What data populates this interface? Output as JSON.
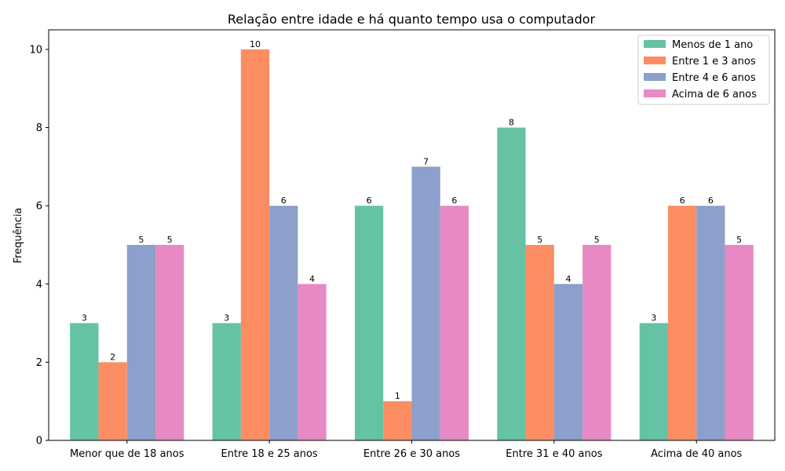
{
  "chart_data": {
    "type": "bar",
    "title": "Relação entre idade e há quanto tempo usa o computador",
    "xlabel": "",
    "ylabel": "Frequência",
    "ylim": [
      0,
      10.5
    ],
    "yticks": [
      0,
      2,
      4,
      6,
      8,
      10
    ],
    "grid": false,
    "legend_position": "top-right",
    "categories": [
      "Menor que de 18 anos",
      "Entre 18 e 25 anos",
      "Entre 26 e 30 anos",
      "Entre 31 e 40 anos",
      "Acima de 40 anos"
    ],
    "series": [
      {
        "name": "Menos de 1 ano",
        "color": "#66c2a5",
        "values": [
          3,
          3,
          6,
          8,
          3
        ]
      },
      {
        "name": "Entre 1 e 3 anos",
        "color": "#fc8d62",
        "values": [
          2,
          10,
          1,
          5,
          6
        ]
      },
      {
        "name": "Entre 4 e 6 anos",
        "color": "#8da0cb",
        "values": [
          5,
          6,
          7,
          4,
          6
        ]
      },
      {
        "name": "Acima de 6 anos",
        "color": "#e78ac3",
        "values": [
          5,
          4,
          6,
          5,
          5
        ]
      }
    ]
  }
}
